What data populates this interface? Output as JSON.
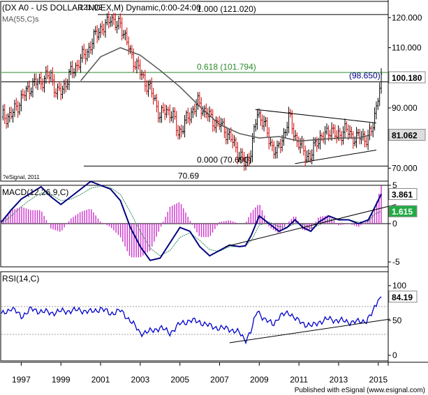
{
  "header": {
    "title": "(DX A0 - US DOLLAR INDEX,M) Dynamic,0:00-24:00",
    "ma_label": "MA(55,C)s",
    "top_price_label": "121.02",
    "copyright": "?eSignal, 2011"
  },
  "footer": {
    "credit": "Published with eSignal (www.esignal.com)"
  },
  "colors": {
    "up_bar": "#000000",
    "down_bar": "#d40000",
    "ma_line": "#555555",
    "fib_green": "#2a8a2a",
    "macd_line": "#000080",
    "signal_line": "#2e8b57",
    "histogram": "#cc33cc",
    "rsi_line": "#0000cc",
    "price_marker_bg": "#ffffff",
    "ma_marker_bg": "#dddddd",
    "macd_marker_bg": "#ffffff",
    "signal_marker_bg": "#22aa44"
  },
  "chart_data": [
    {
      "type": "candlestick",
      "title": "(DX A0 - US DOLLAR INDEX,M) Dynamic,0:00-24:00",
      "x_ticks": [
        "1997",
        "1999",
        "2001",
        "2003",
        "2005",
        "2007",
        "2009",
        "2011",
        "2013",
        "2015"
      ],
      "xlim": [
        1996.0,
        2015.5
      ],
      "y_ticks": [
        "120.000",
        "110.000",
        "100.000",
        "90.000",
        "80.000",
        "70.000"
      ],
      "ylim": [
        68.0,
        124.0
      ],
      "series": [
        {
          "name": "MA(55,C)s",
          "type": "line",
          "x": [
            2000.0,
            2001.0,
            2002.0,
            2003.0,
            2004.0,
            2005.0,
            2006.0,
            2007.0,
            2008.0,
            2009.0,
            2010.0,
            2011.0,
            2012.0,
            2013.0,
            2014.0,
            2014.6
          ],
          "y": [
            99.0,
            107.0,
            110.0,
            107.5,
            102.5,
            97.0,
            90.5,
            84.5,
            81.5,
            80.0,
            80.5,
            79.0,
            79.5,
            80.0,
            80.0,
            81.06
          ]
        }
      ],
      "close": [
        [
          1996.0,
          87.0
        ],
        [
          1996.5,
          87.5
        ],
        [
          1997.0,
          93.0
        ],
        [
          1997.5,
          97.5
        ],
        [
          1998.0,
          99.0
        ],
        [
          1998.5,
          101.0
        ],
        [
          1998.8,
          94.5
        ],
        [
          1999.0,
          95.5
        ],
        [
          1999.5,
          101.5
        ],
        [
          2000.0,
          106.0
        ],
        [
          2000.5,
          110.5
        ],
        [
          2000.9,
          116.5
        ],
        [
          2001.2,
          116.0
        ],
        [
          2001.5,
          121.0
        ],
        [
          2001.8,
          116.5
        ],
        [
          2002.0,
          118.5
        ],
        [
          2002.5,
          108.0
        ],
        [
          2002.8,
          104.5
        ],
        [
          2003.0,
          101.5
        ],
        [
          2003.5,
          96.0
        ],
        [
          2003.8,
          91.5
        ],
        [
          2004.0,
          87.0
        ],
        [
          2004.3,
          89.5
        ],
        [
          2004.6,
          88.0
        ],
        [
          2004.9,
          82.0
        ],
        [
          2005.1,
          83.0
        ],
        [
          2005.5,
          88.0
        ],
        [
          2005.9,
          91.5
        ],
        [
          2006.2,
          89.5
        ],
        [
          2006.6,
          86.0
        ],
        [
          2007.0,
          84.5
        ],
        [
          2007.4,
          81.5
        ],
        [
          2007.8,
          77.0
        ],
        [
          2008.2,
          72.0
        ],
        [
          2008.3,
          70.7
        ],
        [
          2008.6,
          76.5
        ],
        [
          2008.9,
          88.0
        ],
        [
          2009.2,
          86.0
        ],
        [
          2009.5,
          79.0
        ],
        [
          2009.9,
          75.0
        ],
        [
          2010.3,
          82.5
        ],
        [
          2010.5,
          87.0
        ],
        [
          2010.9,
          79.0
        ],
        [
          2011.3,
          75.0
        ],
        [
          2011.6,
          73.5
        ],
        [
          2011.9,
          79.5
        ],
        [
          2012.3,
          80.5
        ],
        [
          2012.6,
          83.5
        ],
        [
          2012.9,
          80.0
        ],
        [
          2013.3,
          83.0
        ],
        [
          2013.6,
          81.0
        ],
        [
          2013.9,
          80.0
        ],
        [
          2014.2,
          80.5
        ],
        [
          2014.5,
          79.8
        ],
        [
          2014.7,
          83.0
        ],
        [
          2014.85,
          89.0
        ],
        [
          2015.0,
          95.0
        ],
        [
          2015.15,
          98.65
        ]
      ],
      "annotations": [
        {
          "text": "1.000 (121.020)",
          "level": 121.02,
          "style": "horizontal"
        },
        {
          "text": "0.618 (101.794)",
          "level": 101.794,
          "style": "horizontal-green"
        },
        {
          "text": "(98.650)",
          "level": 98.65,
          "style": "horizontal"
        },
        {
          "text": "0.000 (70.690)",
          "level": 70.69,
          "style": "horizontal"
        },
        {
          "text": "70.69",
          "level": 70.69,
          "style": "label"
        }
      ],
      "trendlines": [
        {
          "from": [
            2008.8,
            89.5
          ],
          "to": [
            2014.9,
            85.0
          ]
        },
        {
          "from": [
            2010.8,
            71.5
          ],
          "to": [
            2014.9,
            76.0
          ]
        }
      ],
      "price_markers": [
        {
          "text": "100.180",
          "value": 100.18
        },
        {
          "text": "81.062",
          "value": 81.062
        }
      ]
    },
    {
      "type": "line",
      "title": "MACD(12,26,9,C)",
      "x": [
        1996.0,
        1996.5,
        1997.0,
        1997.5,
        1998.0,
        1998.5,
        1999.0,
        1999.5,
        2000.0,
        2000.5,
        2001.0,
        2001.5,
        2002.0,
        2002.5,
        2003.0,
        2003.5,
        2004.0,
        2004.5,
        2005.0,
        2005.5,
        2006.0,
        2006.5,
        2007.0,
        2007.5,
        2008.0,
        2008.3,
        2008.6,
        2009.0,
        2009.5,
        2010.0,
        2010.4,
        2010.8,
        2011.2,
        2011.6,
        2012.0,
        2012.5,
        2013.0,
        2013.5,
        2014.0,
        2014.5,
        2014.8,
        2015.15
      ],
      "y_ticks": [
        "5",
        "0",
        "-5"
      ],
      "ylim": [
        -6.5,
        6.5
      ],
      "series": [
        {
          "name": "MACD",
          "values": [
            0.2,
            1.8,
            3.2,
            4.0,
            4.8,
            3.5,
            2.5,
            3.5,
            4.5,
            5.5,
            5.0,
            4.5,
            3.0,
            -0.5,
            -3.0,
            -4.8,
            -4.5,
            -2.5,
            -0.5,
            -1.0,
            -3.0,
            -4.2,
            -3.5,
            -2.8,
            -3.0,
            -2.9,
            -1.5,
            1.0,
            0.0,
            -1.0,
            -0.5,
            0.5,
            -0.5,
            -1.0,
            0.2,
            1.0,
            0.5,
            0.5,
            0.0,
            0.5,
            2.0,
            3.861
          ]
        },
        {
          "name": "Signal",
          "values": [
            0.0,
            1.0,
            2.2,
            3.2,
            4.0,
            3.8,
            3.0,
            3.2,
            3.8,
            4.6,
            4.9,
            4.7,
            3.8,
            1.5,
            -1.0,
            -3.2,
            -4.2,
            -3.5,
            -1.8,
            -1.2,
            -2.2,
            -3.4,
            -3.6,
            -3.0,
            -3.0,
            -2.9,
            -2.2,
            -0.2,
            0.2,
            -0.4,
            -0.5,
            0.0,
            -0.1,
            -0.6,
            -0.2,
            0.5,
            0.6,
            0.5,
            0.2,
            0.3,
            1.2,
            1.615
          ]
        }
      ],
      "price_markers": [
        {
          "text": "3.861",
          "value": 3.861
        },
        {
          "text": "1.615",
          "value": 1.615
        }
      ],
      "trendline": {
        "from": [
          2007.3,
          -3.0
        ],
        "to": [
          2015.9,
          2.5
        ]
      }
    },
    {
      "type": "line",
      "title": "RSI(14,C)",
      "x": [
        1996.0,
        1996.5,
        1997.0,
        1997.5,
        1998.0,
        1998.5,
        1999.0,
        1999.5,
        2000.0,
        2000.5,
        2001.0,
        2001.5,
        2002.0,
        2002.5,
        2003.0,
        2003.5,
        2004.0,
        2004.5,
        2005.0,
        2005.5,
        2006.0,
        2006.5,
        2007.0,
        2007.5,
        2008.0,
        2008.3,
        2008.6,
        2008.9,
        2009.3,
        2009.7,
        2010.0,
        2010.5,
        2010.9,
        2011.3,
        2011.7,
        2012.0,
        2012.5,
        2013.0,
        2013.5,
        2014.0,
        2014.4,
        2014.7,
        2015.0,
        2015.15
      ],
      "y_ticks": [
        "100",
        "50",
        "0"
      ],
      "ylim": [
        0,
        100
      ],
      "series": [
        {
          "name": "RSI",
          "values": [
            58,
            68,
            56,
            66,
            63,
            61,
            63,
            64,
            65,
            62,
            67,
            60,
            64,
            50,
            32,
            34,
            40,
            32,
            45,
            50,
            48,
            42,
            39,
            38,
            32,
            22,
            35,
            65,
            50,
            45,
            55,
            62,
            50,
            45,
            42,
            48,
            52,
            50,
            48,
            48,
            50,
            60,
            80,
            84.19
          ]
        }
      ],
      "price_markers": [
        {
          "text": "84.19",
          "value": 84.19
        }
      ],
      "trendline": {
        "from": [
          2007.5,
          18
        ],
        "to": [
          2015.6,
          52
        ]
      }
    }
  ]
}
